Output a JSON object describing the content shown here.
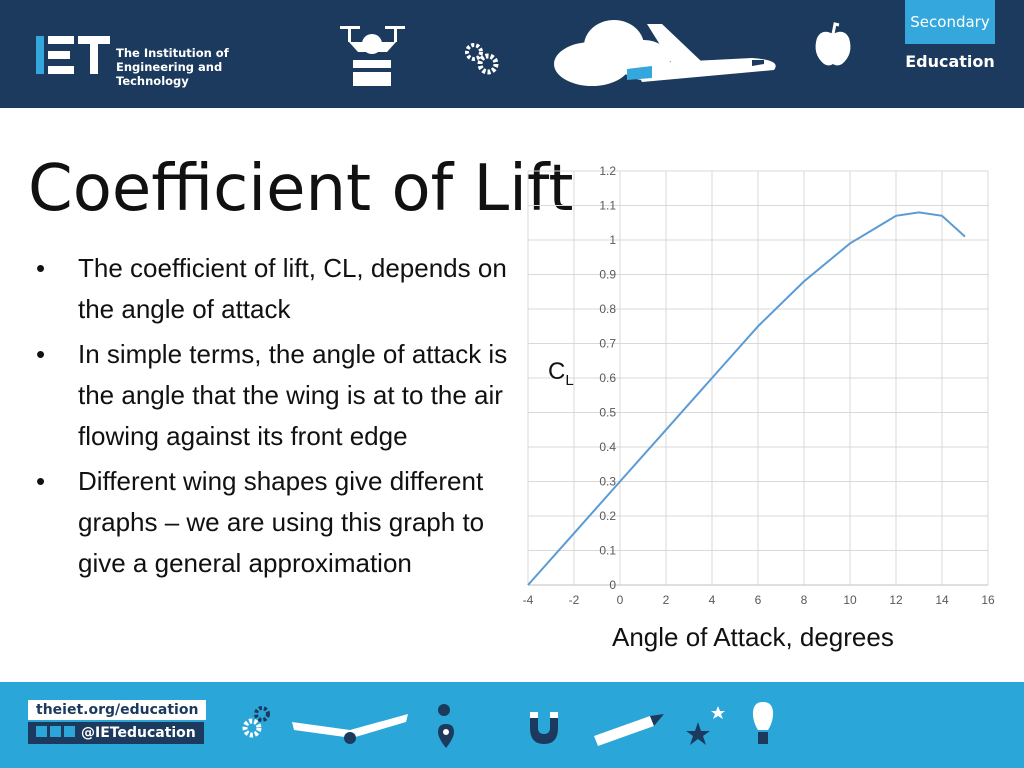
{
  "header": {
    "org_line1": "The Institution of",
    "org_line2": "Engineering and Technology",
    "badge_top": "Secondary",
    "badge_bottom": "Education"
  },
  "slide": {
    "title": "Coefficient of Lift",
    "bullets": [
      "The coefficient of lift, CL, depends on the angle of attack",
      "In simple terms, the angle of attack is the angle that the wing is at to the air flowing against its front edge",
      "Different wing shapes give different graphs – we are using this graph to give a general approximation"
    ]
  },
  "chart_data": {
    "type": "line",
    "ylabel_main": "C",
    "ylabel_sub": "L",
    "xlabel": "Angle of Attack, degrees",
    "xlim": [
      -4,
      16
    ],
    "ylim": [
      0,
      1.2
    ],
    "xticks": [
      "-4",
      "-2",
      "0",
      "2",
      "4",
      "6",
      "8",
      "10",
      "12",
      "14",
      "16"
    ],
    "yticks": [
      "0",
      "0.1",
      "0.2",
      "0.3",
      "0.4",
      "0.5",
      "0.6",
      "0.7",
      "0.8",
      "0.9",
      "1",
      "1.1",
      "1.2"
    ],
    "grid": true,
    "series": [
      {
        "x": [
          -4,
          -2,
          0,
          2,
          4,
          6,
          8,
          10,
          12,
          13,
          14,
          15
        ],
        "y": [
          0,
          0.15,
          0.3,
          0.45,
          0.6,
          0.75,
          0.88,
          0.99,
          1.07,
          1.08,
          1.07,
          1.01
        ]
      }
    ],
    "line_color": "#5b9bd5"
  },
  "footer": {
    "url": "theiet.org/education",
    "social": "@IETeducation"
  },
  "colors": {
    "header_bg": "#1b3a5e",
    "footer_bg": "#2aa6d8",
    "accent": "#34a8dc"
  }
}
